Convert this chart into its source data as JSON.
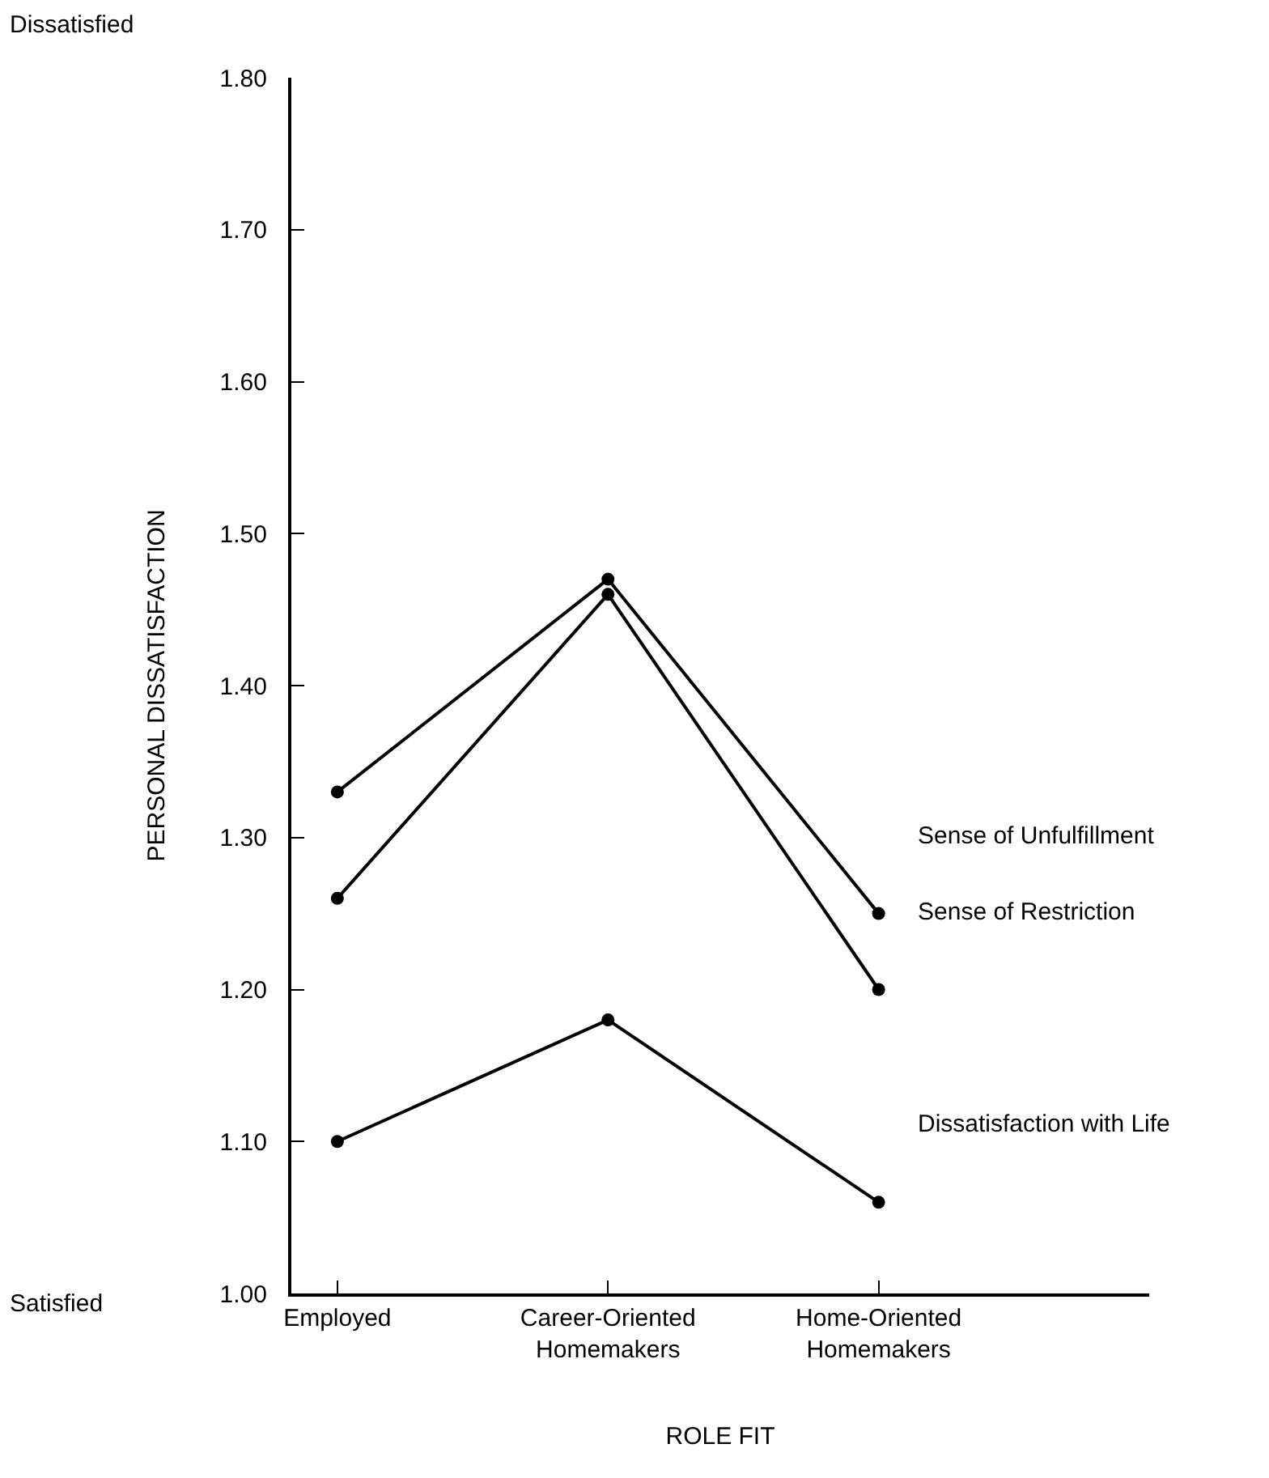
{
  "chart_data": {
    "type": "line",
    "xlabel": "ROLE FIT",
    "ylabel": "PERSONAL DISSATISFACTION",
    "categories": [
      "Employed",
      "Career-Oriented Homemakers",
      "Home-Oriented Homemakers"
    ],
    "series": [
      {
        "name": "Sense of Unfulfillment",
        "color": "#000000",
        "values": [
          1.33,
          1.47,
          1.25
        ]
      },
      {
        "name": "Sense of Restriction",
        "color": "#000000",
        "values": [
          1.26,
          1.46,
          1.2
        ]
      },
      {
        "name": "Dissatisfaction with Life",
        "color": "#000000",
        "values": [
          1.1,
          1.18,
          1.06
        ]
      }
    ],
    "ylim": [
      1.0,
      1.8
    ],
    "yticks": [
      {
        "value": 1.0,
        "label": "1.00"
      },
      {
        "value": 1.1,
        "label": "1.10"
      },
      {
        "value": 1.2,
        "label": "1.20"
      },
      {
        "value": 1.3,
        "label": "1.30"
      },
      {
        "value": 1.4,
        "label": "1.40"
      },
      {
        "value": 1.5,
        "label": "1.50"
      },
      {
        "value": 1.6,
        "label": "1.60"
      },
      {
        "value": 1.7,
        "label": "1.70"
      },
      {
        "value": 1.8,
        "label": "1.80"
      }
    ],
    "annotations": [
      "Dissatisfied",
      "Satisfied"
    ],
    "grid": false,
    "legend": false,
    "marker": "circle",
    "line_style": "solid"
  }
}
